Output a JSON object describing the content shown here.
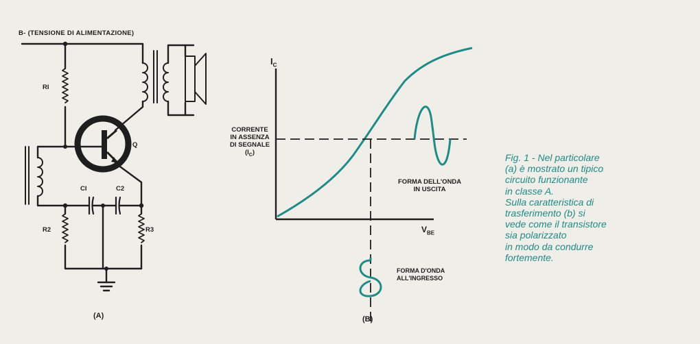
{
  "schematic": {
    "supply_label": "B- (TENSIONE DI ALIMENTAZIONE)",
    "r1": "RI",
    "r2": "R2",
    "r3": "R3",
    "c1": "CI",
    "c2": "C2",
    "transistor": "Q",
    "panel_label": "(A)"
  },
  "transfer_plot": {
    "y_axis_symbol": "I",
    "y_axis_subscript": "C",
    "x_axis_symbol": "V",
    "x_axis_subscript": "BE",
    "quiescent_label": [
      "CORRENTE",
      "IN ASSENZA",
      "DI SEGNALE",
      "(I",
      "C",
      ")"
    ],
    "output_wave_label": [
      "FORMA DELL'ONDA",
      "IN USCITA"
    ],
    "input_wave_label": [
      "FORMA D'ONDA",
      "ALL'INGRESSO"
    ],
    "panel_label": "(B)"
  },
  "caption": [
    "Fig. 1 - Nel particolare",
    "(a) è mostrato un tipico",
    "circuito funzionante",
    "in classe A.",
    "Sulla caratteristica di",
    "trasferimento (b) si",
    "vede come il transistore",
    "sia polarizzato",
    "in modo da condurre",
    "fortemente."
  ],
  "colors": {
    "ink": "#1e1e1e",
    "accent": "#1f8a86",
    "paper": "#f0eee9"
  }
}
